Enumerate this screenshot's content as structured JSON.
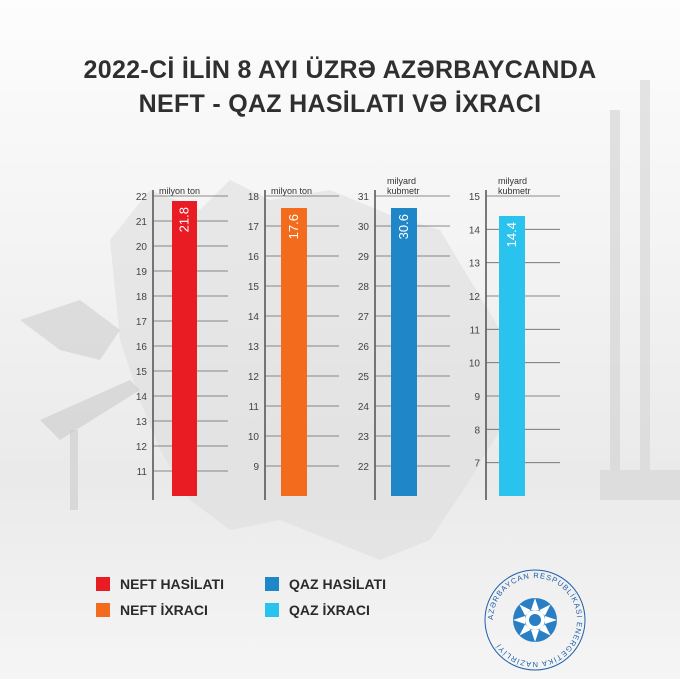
{
  "title_line1": "2022-Cİ İLİN 8 AYI ÜZRƏ AZƏRBAYCANDA",
  "title_line2": "NEFT - QAZ HASİLATI VƏ İXRACI",
  "logo_text": "AZƏRBAYCAN RESPUBLİKASI ENERGETİKA NAZİRLİYİ",
  "chart_data": [
    {
      "type": "bar",
      "unit": "milyon ton",
      "ylim": [
        10,
        22
      ],
      "ticks": [
        11,
        12,
        13,
        14,
        15,
        16,
        17,
        18,
        19,
        20,
        21,
        22
      ],
      "series": [
        {
          "name": "NEFT HASİLATI",
          "values": [
            21.8
          ]
        }
      ],
      "value_label": "21.8",
      "color": "#e91b23"
    },
    {
      "type": "bar",
      "unit": "milyon ton",
      "ylim": [
        8,
        18
      ],
      "ticks": [
        9,
        10,
        11,
        12,
        13,
        14,
        15,
        16,
        17,
        18
      ],
      "series": [
        {
          "name": "NEFT İXRACI",
          "values": [
            17.6
          ]
        }
      ],
      "value_label": "17.6",
      "color": "#f36c1d"
    },
    {
      "type": "bar",
      "unit": "milyard kubmetr",
      "ylim": [
        21,
        31
      ],
      "ticks": [
        22,
        23,
        24,
        25,
        26,
        27,
        28,
        29,
        30,
        31
      ],
      "series": [
        {
          "name": "QAZ HASİLATI",
          "values": [
            30.6
          ]
        }
      ],
      "value_label": "30.6",
      "color": "#1f86c8"
    },
    {
      "type": "bar",
      "unit": "milyard kubmetr",
      "ylim": [
        6,
        15
      ],
      "ticks": [
        7,
        8,
        9,
        10,
        11,
        12,
        13,
        14,
        15
      ],
      "series": [
        {
          "name": "QAZ İXRACI",
          "values": [
            14.4
          ]
        }
      ],
      "value_label": "14.4",
      "color": "#29c3ee"
    }
  ]
}
